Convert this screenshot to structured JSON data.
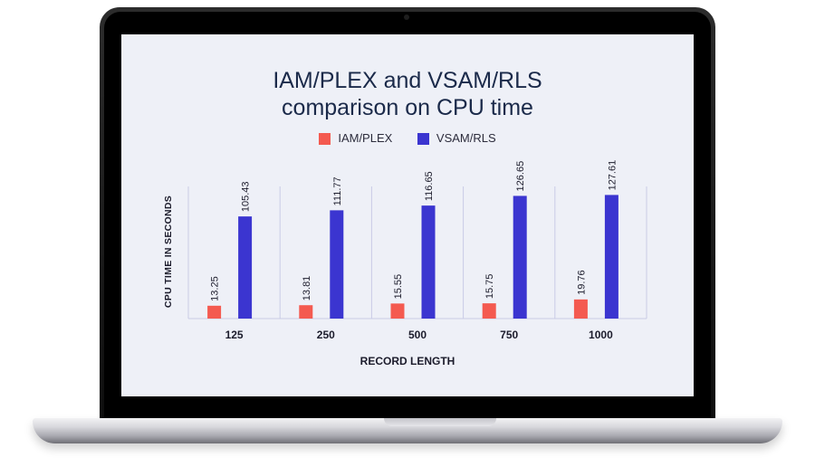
{
  "chart_data": {
    "type": "bar",
    "title_line1": "IAM/PLEX and VSAM/RLS",
    "title_line2": "comparison on CPU time",
    "xlabel": "RECORD LENGTH",
    "ylabel": "CPU TIME IN SECONDS",
    "categories": [
      "125",
      "250",
      "500",
      "750",
      "1000"
    ],
    "series": [
      {
        "name": "IAM/PLEX",
        "color": "#f45a50",
        "values": [
          13.25,
          13.81,
          15.55,
          15.75,
          19.76
        ],
        "labels": [
          "13.25",
          "13.81",
          "15.55",
          "15.75",
          "19.76"
        ]
      },
      {
        "name": "VSAM/RLS",
        "color": "#3b35d0",
        "values": [
          105.43,
          111.77,
          116.65,
          126.65,
          127.61
        ],
        "labels": [
          "105.43",
          "111.77",
          "116.65",
          "126.65",
          "127.61"
        ]
      }
    ],
    "ylim": [
      0,
      128
    ],
    "grid": "vertical",
    "legend_position": "top"
  }
}
